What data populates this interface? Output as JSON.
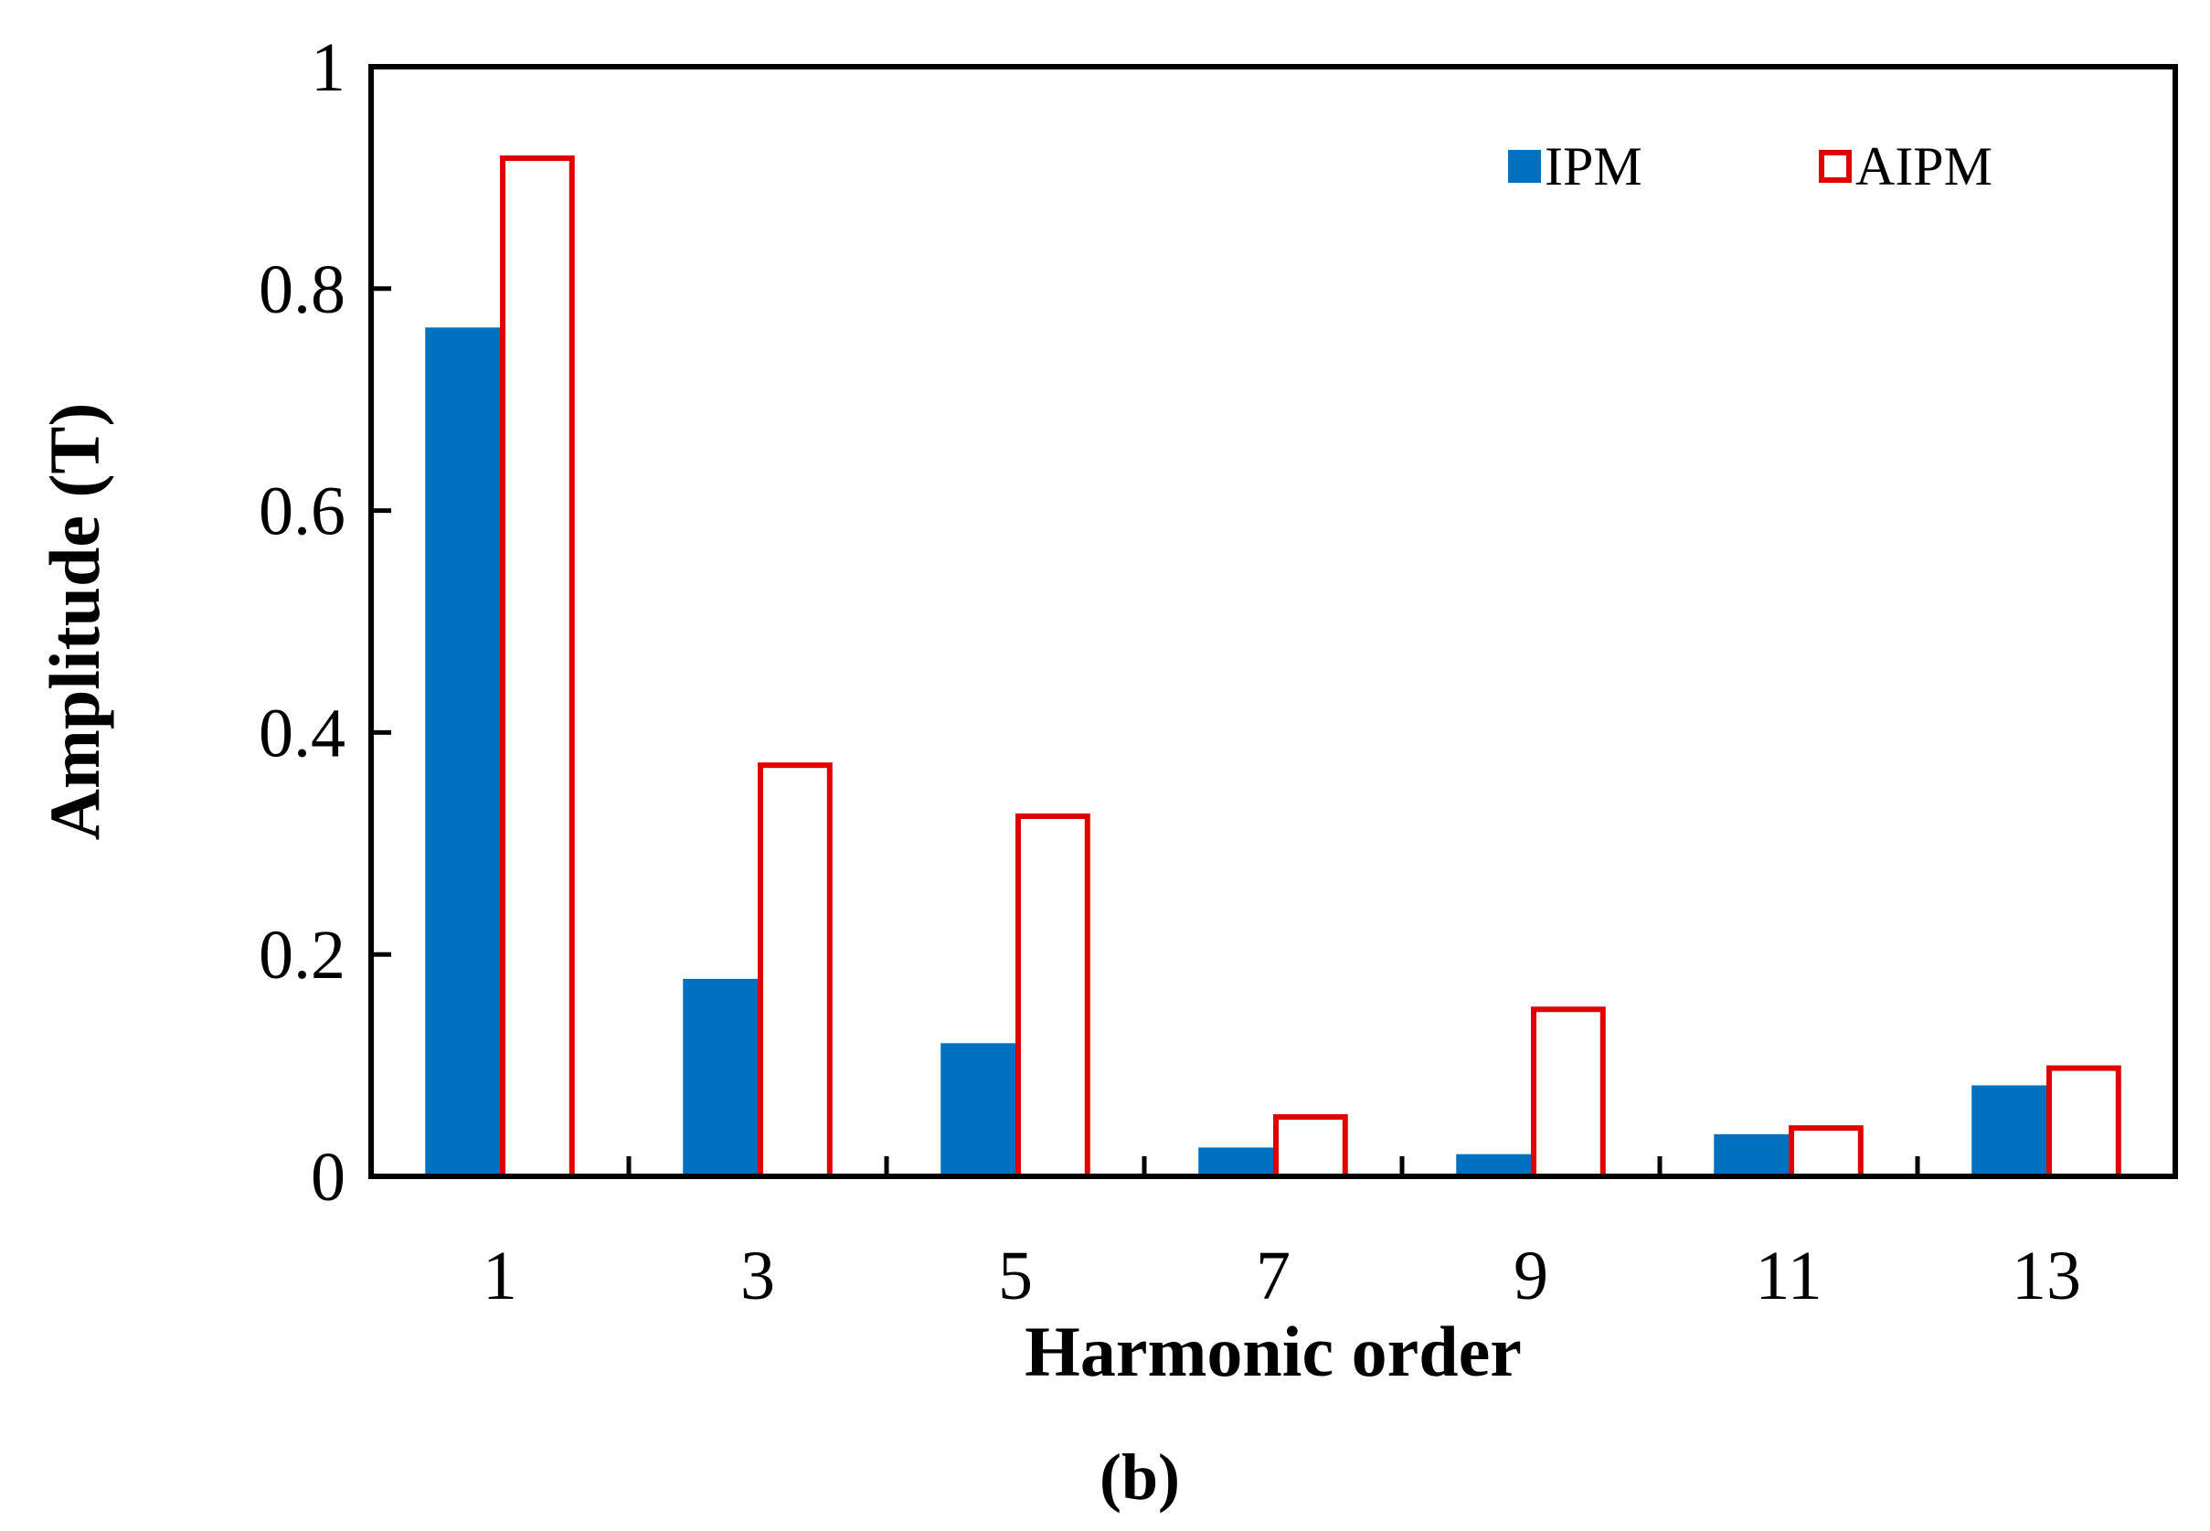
{
  "chart_data": {
    "type": "bar",
    "categories": [
      "1",
      "3",
      "5",
      "7",
      "9",
      "11",
      "13"
    ],
    "series": [
      {
        "name": "IPM",
        "style": "filled",
        "color": "#0070C0",
        "values": [
          0.765,
          0.178,
          0.12,
          0.026,
          0.02,
          0.038,
          0.082
        ]
      },
      {
        "name": "AIPM",
        "style": "outline",
        "color": "#E00000",
        "values": [
          0.92,
          0.373,
          0.327,
          0.056,
          0.153,
          0.046,
          0.1
        ]
      }
    ],
    "xlabel": "Harmonic order",
    "ylabel": "Amplitude (T)",
    "ylim": [
      0,
      1
    ],
    "yticks": [
      "0",
      "0.2",
      "0.4",
      "0.6",
      "0.8",
      "1"
    ],
    "grid": false,
    "legend_position": "top-right"
  },
  "caption": "(b)"
}
